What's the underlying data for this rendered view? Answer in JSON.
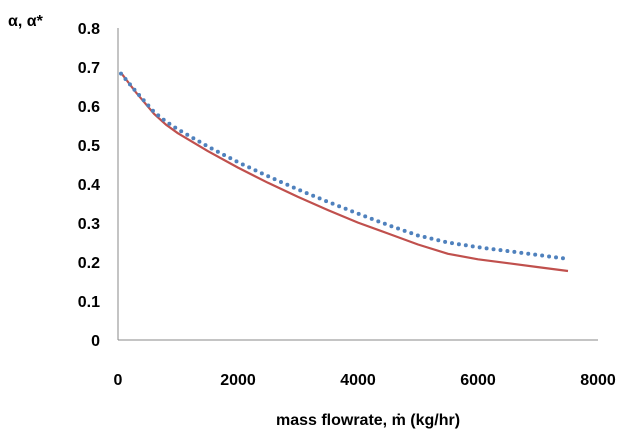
{
  "chart_data": {
    "type": "line",
    "xlabel": "mass flowrate, ṁ (kg/hr)",
    "ylabel": "α, α*",
    "xlim": [
      0,
      8000
    ],
    "ylim": [
      0,
      0.8
    ],
    "x_ticks": [
      "0",
      "2000",
      "4000",
      "6000",
      "8000"
    ],
    "y_ticks": [
      "0",
      "0.1",
      "0.2",
      "0.3",
      "0.4",
      "0.5",
      "0.6",
      "0.7",
      "0.8"
    ],
    "grid": false,
    "legend": "none",
    "series": [
      {
        "style": "solid",
        "color": "#c0504d",
        "x": [
          50,
          300,
          600,
          800,
          1000,
          1500,
          2000,
          2500,
          3000,
          3500,
          4000,
          4500,
          5000,
          5500,
          6000,
          6500,
          7000,
          7500
        ],
        "y": [
          0.685,
          0.635,
          0.58,
          0.552,
          0.53,
          0.484,
          0.442,
          0.403,
          0.367,
          0.333,
          0.301,
          0.273,
          0.245,
          0.221,
          0.207,
          0.197,
          0.187,
          0.177
        ]
      },
      {
        "style": "dotted",
        "color": "#4f81bd",
        "x": [
          50,
          300,
          600,
          800,
          1000,
          1500,
          2000,
          2500,
          3000,
          3500,
          4000,
          4500,
          5000,
          5500,
          6000,
          6500,
          7000,
          7500
        ],
        "y": [
          0.683,
          0.637,
          0.585,
          0.56,
          0.54,
          0.496,
          0.456,
          0.42,
          0.386,
          0.354,
          0.324,
          0.295,
          0.268,
          0.25,
          0.238,
          0.228,
          0.218,
          0.208
        ]
      }
    ]
  }
}
